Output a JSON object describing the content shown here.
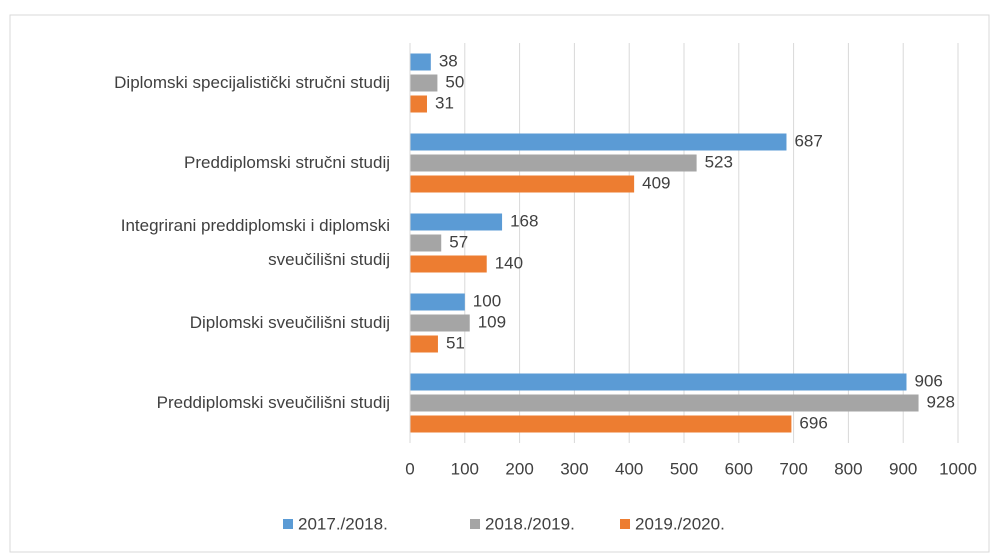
{
  "chart_data": {
    "type": "hbar",
    "categories": [
      "Diplomski specijalistički stručni studij",
      "Preddiplomski stručni studij",
      "Integrirani preddiplomski i diplomski\nsveučilišni  studij",
      "Diplomski sveučilišni studij",
      "Preddiplomski sveučilišni studij"
    ],
    "series": [
      {
        "name": "2017./2018.",
        "color": "#5b9bd5",
        "values": [
          38,
          687,
          168,
          100,
          906
        ]
      },
      {
        "name": "2018./2019.",
        "color": "#a5a5a5",
        "values": [
          50,
          523,
          57,
          109,
          928
        ]
      },
      {
        "name": "2019./2020.",
        "color": "#ed7d31",
        "values": [
          31,
          409,
          140,
          51,
          696
        ]
      }
    ],
    "xlim": [
      0,
      1000
    ],
    "xticks": [
      0,
      100,
      200,
      300,
      400,
      500,
      600,
      700,
      800,
      900,
      1000
    ],
    "grid": true,
    "legend": "bottom"
  }
}
